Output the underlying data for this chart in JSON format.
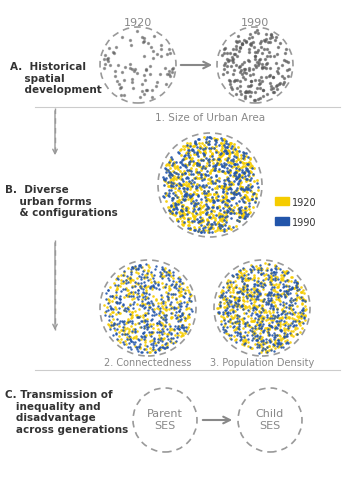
{
  "bg_color": "#ffffff",
  "text_color": "#333333",
  "gray_color": "#888888",
  "dashed_color": "#999999",
  "arrow_color": "#888888",
  "yellow_color": "#F5CC00",
  "blue_color": "#2255AA",
  "section_A_label": "A.  Historical\n    spatial\n    development",
  "section_B_label": "B.  Diverse\n    urban forms\n    & configurations",
  "section_C_label": "C. Transmission of\n   inequality and\n   disadvantage\n   across generations",
  "label_1920": "1920",
  "label_1990": "1990",
  "label_size": "1. Size of Urban Area",
  "label_connect": "2. Connectedness",
  "label_density": "3. Population Density",
  "legend_1920": "1920",
  "legend_1990": "1990",
  "parent_label": "Parent\nSES",
  "child_label": "Child\nSES"
}
